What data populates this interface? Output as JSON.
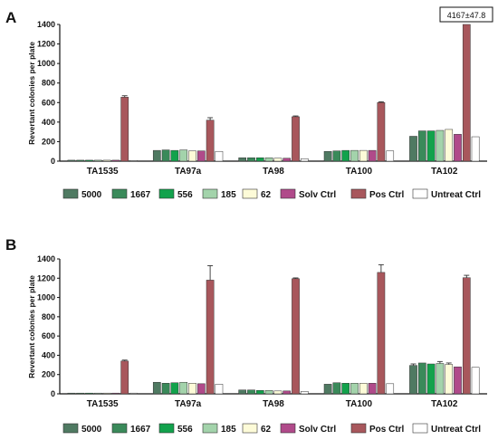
{
  "colors": {
    "5000": "#4f7a62",
    "1667": "#3a8a5a",
    "556": "#12a24c",
    "185": "#a3d3ab",
    "62": "#fdfbd8",
    "Solv Ctrl": "#b04a8a",
    "Pos Ctrl": "#a8575c",
    "Untreat Ctrl": "#ffffff"
  },
  "chart_data": [
    {
      "panel": "A",
      "type": "bar",
      "ylabel": "Revertant colonies per plate",
      "ylim": [
        0,
        1400
      ],
      "yticks": [
        0,
        200,
        400,
        600,
        800,
        1000,
        1200,
        1400
      ],
      "categories": [
        "TA1535",
        "TA97a",
        "TA98",
        "TA100",
        "TA102"
      ],
      "series": [
        {
          "name": "5000",
          "values": [
            10,
            110,
            35,
            100,
            255
          ],
          "errors": [
            0,
            0,
            0,
            0,
            0
          ]
        },
        {
          "name": "1667",
          "values": [
            10,
            115,
            35,
            105,
            310
          ],
          "errors": [
            0,
            0,
            0,
            0,
            0
          ]
        },
        {
          "name": "556",
          "values": [
            10,
            110,
            35,
            110,
            310
          ],
          "errors": [
            0,
            0,
            0,
            0,
            0
          ]
        },
        {
          "name": "185",
          "values": [
            10,
            115,
            35,
            110,
            315
          ],
          "errors": [
            0,
            0,
            0,
            0,
            0
          ]
        },
        {
          "name": "62",
          "values": [
            10,
            105,
            30,
            110,
            325
          ],
          "errors": [
            0,
            0,
            0,
            0,
            0
          ]
        },
        {
          "name": "Solv Ctrl",
          "values": [
            10,
            105,
            30,
            110,
            275
          ],
          "errors": [
            0,
            0,
            0,
            0,
            0
          ]
        },
        {
          "name": "Pos Ctrl",
          "values": [
            655,
            420,
            455,
            600,
            1400
          ],
          "errors": [
            15,
            25,
            8,
            8,
            0
          ]
        },
        {
          "name": "Untreat Ctrl",
          "values": [
            5,
            100,
            25,
            105,
            250
          ],
          "errors": [
            0,
            0,
            0,
            0,
            0
          ]
        }
      ],
      "annotation": "4167±47.8"
    },
    {
      "panel": "B",
      "type": "bar",
      "ylabel": "Revertant colonies per plate",
      "ylim": [
        0,
        1400
      ],
      "yticks": [
        0,
        200,
        400,
        600,
        800,
        1000,
        1200,
        1400
      ],
      "categories": [
        "TA1535",
        "TA97a",
        "TA98",
        "TA100",
        "TA102"
      ],
      "series": [
        {
          "name": "5000",
          "values": [
            5,
            120,
            40,
            100,
            295
          ],
          "errors": [
            0,
            0,
            0,
            0,
            15
          ]
        },
        {
          "name": "1667",
          "values": [
            5,
            110,
            40,
            115,
            320
          ],
          "errors": [
            0,
            0,
            0,
            0,
            0
          ]
        },
        {
          "name": "556",
          "values": [
            5,
            115,
            35,
            110,
            310
          ],
          "errors": [
            0,
            0,
            0,
            0,
            0
          ]
        },
        {
          "name": "185",
          "values": [
            5,
            120,
            35,
            110,
            315
          ],
          "errors": [
            0,
            0,
            0,
            0,
            20
          ]
        },
        {
          "name": "62",
          "values": [
            5,
            110,
            30,
            110,
            305
          ],
          "errors": [
            0,
            0,
            0,
            0,
            15
          ]
        },
        {
          "name": "Solv Ctrl",
          "values": [
            5,
            105,
            30,
            110,
            280
          ],
          "errors": [
            0,
            0,
            0,
            0,
            0
          ]
        },
        {
          "name": "Pos Ctrl",
          "values": [
            340,
            1180,
            1195,
            1260,
            1205
          ],
          "errors": [
            10,
            150,
            8,
            80,
            25
          ]
        },
        {
          "name": "Untreat Ctrl",
          "values": [
            5,
            100,
            25,
            105,
            275
          ],
          "errors": [
            0,
            0,
            0,
            0,
            0
          ]
        }
      ]
    }
  ]
}
